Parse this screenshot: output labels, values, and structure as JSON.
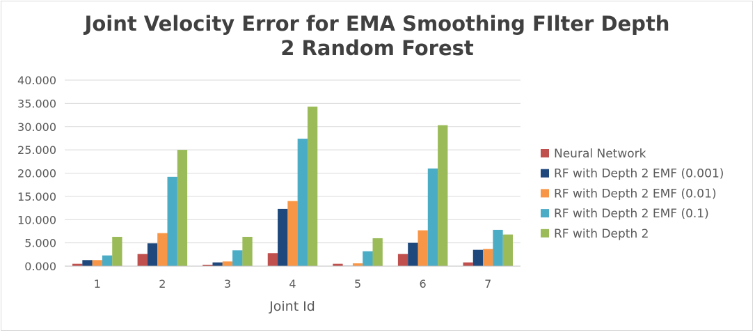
{
  "chart_data": {
    "type": "bar",
    "title_lines": [
      "Joint Velocity Error for EMA Smoothing FIlter Depth",
      "2 Random Forest"
    ],
    "xlabel": "Joint Id",
    "ylabel": "",
    "ylim": [
      0,
      40
    ],
    "yticks": [
      "0.000",
      "5.000",
      "10.000",
      "15.000",
      "20.000",
      "25.000",
      "30.000",
      "35.000",
      "40.000"
    ],
    "grid": true,
    "legend_position": "right",
    "categories": [
      "1",
      "2",
      "3",
      "4",
      "5",
      "6",
      "7"
    ],
    "series": [
      {
        "name": "Neural Network",
        "color": "#c0504d",
        "values": [
          0.5,
          2.6,
          0.3,
          2.8,
          0.5,
          2.6,
          0.8
        ]
      },
      {
        "name": "RF with Depth 2 EMF (0.001)",
        "color": "#1f497d",
        "values": [
          1.3,
          4.9,
          0.8,
          12.3,
          0.1,
          5.0,
          3.5
        ]
      },
      {
        "name": "RF with Depth 2 EMF (0.01)",
        "color": "#f79646",
        "values": [
          1.3,
          7.1,
          1.0,
          14.0,
          0.6,
          7.7,
          3.7
        ]
      },
      {
        "name": "RF with Depth 2 EMF (0.1)",
        "color": "#4bacc6",
        "values": [
          2.3,
          19.2,
          3.4,
          27.4,
          3.2,
          21.0,
          7.8
        ]
      },
      {
        "name": "RF with Depth 2",
        "color": "#9bbb59",
        "values": [
          6.3,
          25.0,
          6.3,
          34.3,
          6.0,
          30.3,
          6.8
        ]
      }
    ]
  }
}
